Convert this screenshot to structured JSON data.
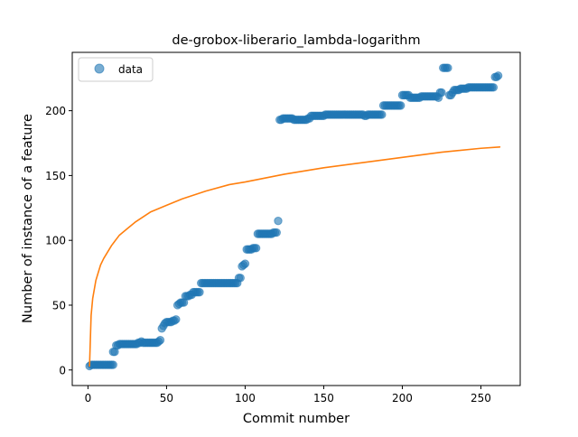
{
  "chart_data": {
    "type": "scatter",
    "title": "de-grobox-liberario_lambda-logarithm",
    "xlabel": "Commit number",
    "ylabel": "Number of instance of a feature",
    "xlim": [
      -10,
      275
    ],
    "ylim": [
      -12,
      245
    ],
    "xticks": [
      0,
      50,
      100,
      150,
      200,
      250
    ],
    "yticks": [
      0,
      50,
      100,
      150,
      200
    ],
    "grid": false,
    "legend": {
      "position": "top-left",
      "entries": [
        "data"
      ]
    },
    "series": [
      {
        "name": "data",
        "kind": "scatter",
        "color": "#1f77b4",
        "points": [
          [
            1,
            3
          ],
          [
            2,
            4
          ],
          [
            3,
            4
          ],
          [
            4,
            4
          ],
          [
            5,
            4
          ],
          [
            6,
            4
          ],
          [
            7,
            4
          ],
          [
            8,
            4
          ],
          [
            9,
            4
          ],
          [
            10,
            4
          ],
          [
            11,
            4
          ],
          [
            12,
            4
          ],
          [
            13,
            4
          ],
          [
            14,
            4
          ],
          [
            15,
            4
          ],
          [
            16,
            4
          ],
          [
            16,
            14
          ],
          [
            17,
            14
          ],
          [
            18,
            19
          ],
          [
            19,
            19
          ],
          [
            20,
            20
          ],
          [
            21,
            20
          ],
          [
            22,
            20
          ],
          [
            23,
            20
          ],
          [
            24,
            20
          ],
          [
            25,
            20
          ],
          [
            26,
            20
          ],
          [
            27,
            20
          ],
          [
            28,
            20
          ],
          [
            29,
            20
          ],
          [
            30,
            20
          ],
          [
            31,
            20
          ],
          [
            32,
            21
          ],
          [
            33,
            21
          ],
          [
            34,
            22
          ],
          [
            35,
            21
          ],
          [
            36,
            21
          ],
          [
            37,
            21
          ],
          [
            38,
            21
          ],
          [
            39,
            21
          ],
          [
            40,
            21
          ],
          [
            41,
            21
          ],
          [
            42,
            21
          ],
          [
            43,
            21
          ],
          [
            44,
            21
          ],
          [
            45,
            22
          ],
          [
            46,
            23
          ],
          [
            47,
            32
          ],
          [
            48,
            34
          ],
          [
            49,
            36
          ],
          [
            50,
            37
          ],
          [
            51,
            37
          ],
          [
            52,
            37
          ],
          [
            53,
            37
          ],
          [
            54,
            38
          ],
          [
            55,
            38
          ],
          [
            56,
            39
          ],
          [
            57,
            50
          ],
          [
            58,
            51
          ],
          [
            59,
            52
          ],
          [
            60,
            52
          ],
          [
            61,
            52
          ],
          [
            62,
            57
          ],
          [
            63,
            57
          ],
          [
            64,
            57
          ],
          [
            65,
            58
          ],
          [
            66,
            58
          ],
          [
            67,
            60
          ],
          [
            68,
            60
          ],
          [
            69,
            60
          ],
          [
            70,
            60
          ],
          [
            71,
            60
          ],
          [
            72,
            67
          ],
          [
            73,
            67
          ],
          [
            74,
            67
          ],
          [
            75,
            67
          ],
          [
            76,
            67
          ],
          [
            77,
            67
          ],
          [
            78,
            67
          ],
          [
            79,
            67
          ],
          [
            80,
            67
          ],
          [
            81,
            67
          ],
          [
            82,
            67
          ],
          [
            83,
            67
          ],
          [
            84,
            67
          ],
          [
            85,
            67
          ],
          [
            86,
            67
          ],
          [
            87,
            67
          ],
          [
            88,
            67
          ],
          [
            89,
            67
          ],
          [
            90,
            67
          ],
          [
            91,
            67
          ],
          [
            92,
            67
          ],
          [
            93,
            67
          ],
          [
            94,
            67
          ],
          [
            95,
            67
          ],
          [
            96,
            71
          ],
          [
            97,
            71
          ],
          [
            98,
            80
          ],
          [
            99,
            81
          ],
          [
            100,
            82
          ],
          [
            101,
            93
          ],
          [
            102,
            93
          ],
          [
            103,
            93
          ],
          [
            104,
            93
          ],
          [
            105,
            94
          ],
          [
            106,
            94
          ],
          [
            107,
            94
          ],
          [
            108,
            105
          ],
          [
            109,
            105
          ],
          [
            110,
            105
          ],
          [
            111,
            105
          ],
          [
            112,
            105
          ],
          [
            113,
            105
          ],
          [
            114,
            105
          ],
          [
            115,
            105
          ],
          [
            116,
            105
          ],
          [
            117,
            105
          ],
          [
            118,
            106
          ],
          [
            119,
            106
          ],
          [
            120,
            106
          ],
          [
            121,
            115
          ],
          [
            122,
            193
          ],
          [
            123,
            193
          ],
          [
            124,
            194
          ],
          [
            125,
            194
          ],
          [
            126,
            194
          ],
          [
            127,
            194
          ],
          [
            128,
            194
          ],
          [
            129,
            194
          ],
          [
            130,
            194
          ],
          [
            131,
            193
          ],
          [
            132,
            193
          ],
          [
            133,
            193
          ],
          [
            134,
            193
          ],
          [
            135,
            193
          ],
          [
            136,
            193
          ],
          [
            137,
            193
          ],
          [
            138,
            193
          ],
          [
            139,
            193
          ],
          [
            140,
            194
          ],
          [
            141,
            194
          ],
          [
            142,
            196
          ],
          [
            143,
            196
          ],
          [
            144,
            196
          ],
          [
            145,
            196
          ],
          [
            146,
            196
          ],
          [
            147,
            196
          ],
          [
            148,
            196
          ],
          [
            149,
            196
          ],
          [
            150,
            196
          ],
          [
            151,
            197
          ],
          [
            152,
            197
          ],
          [
            153,
            197
          ],
          [
            154,
            197
          ],
          [
            155,
            197
          ],
          [
            156,
            197
          ],
          [
            157,
            197
          ],
          [
            158,
            197
          ],
          [
            159,
            197
          ],
          [
            160,
            197
          ],
          [
            161,
            197
          ],
          [
            162,
            197
          ],
          [
            163,
            197
          ],
          [
            164,
            197
          ],
          [
            165,
            197
          ],
          [
            166,
            197
          ],
          [
            167,
            197
          ],
          [
            168,
            197
          ],
          [
            169,
            197
          ],
          [
            170,
            197
          ],
          [
            171,
            197
          ],
          [
            172,
            197
          ],
          [
            173,
            197
          ],
          [
            174,
            197
          ],
          [
            175,
            197
          ],
          [
            176,
            196
          ],
          [
            177,
            196
          ],
          [
            178,
            197
          ],
          [
            179,
            197
          ],
          [
            180,
            197
          ],
          [
            181,
            197
          ],
          [
            182,
            197
          ],
          [
            183,
            197
          ],
          [
            184,
            197
          ],
          [
            185,
            197
          ],
          [
            186,
            197
          ],
          [
            187,
            197
          ],
          [
            188,
            204
          ],
          [
            189,
            204
          ],
          [
            190,
            204
          ],
          [
            191,
            204
          ],
          [
            192,
            204
          ],
          [
            193,
            204
          ],
          [
            194,
            204
          ],
          [
            195,
            204
          ],
          [
            196,
            204
          ],
          [
            197,
            204
          ],
          [
            198,
            204
          ],
          [
            199,
            204
          ],
          [
            200,
            212
          ],
          [
            201,
            212
          ],
          [
            202,
            212
          ],
          [
            203,
            212
          ],
          [
            204,
            212
          ],
          [
            205,
            210
          ],
          [
            206,
            210
          ],
          [
            207,
            210
          ],
          [
            208,
            210
          ],
          [
            209,
            210
          ],
          [
            210,
            210
          ],
          [
            211,
            210
          ],
          [
            212,
            211
          ],
          [
            213,
            211
          ],
          [
            214,
            211
          ],
          [
            215,
            211
          ],
          [
            216,
            211
          ],
          [
            217,
            211
          ],
          [
            218,
            211
          ],
          [
            219,
            211
          ],
          [
            220,
            211
          ],
          [
            221,
            211
          ],
          [
            222,
            211
          ],
          [
            223,
            210
          ],
          [
            224,
            214
          ],
          [
            225,
            214
          ],
          [
            226,
            233
          ],
          [
            227,
            233
          ],
          [
            228,
            233
          ],
          [
            229,
            233
          ],
          [
            230,
            212
          ],
          [
            231,
            212
          ],
          [
            232,
            214
          ],
          [
            233,
            216
          ],
          [
            234,
            216
          ],
          [
            235,
            216
          ],
          [
            236,
            216
          ],
          [
            237,
            217
          ],
          [
            238,
            217
          ],
          [
            239,
            217
          ],
          [
            240,
            217
          ],
          [
            241,
            217
          ],
          [
            242,
            218
          ],
          [
            243,
            218
          ],
          [
            244,
            218
          ],
          [
            245,
            218
          ],
          [
            246,
            218
          ],
          [
            247,
            218
          ],
          [
            248,
            218
          ],
          [
            249,
            218
          ],
          [
            250,
            218
          ],
          [
            251,
            218
          ],
          [
            252,
            218
          ],
          [
            253,
            218
          ],
          [
            254,
            218
          ],
          [
            255,
            218
          ],
          [
            256,
            218
          ],
          [
            257,
            218
          ],
          [
            258,
            218
          ],
          [
            259,
            226
          ],
          [
            260,
            226
          ],
          [
            261,
            227
          ]
        ]
      },
      {
        "kind": "line",
        "color": "#ff7f0e",
        "points": [
          [
            1,
            3
          ],
          [
            2,
            42
          ],
          [
            3,
            55
          ],
          [
            5,
            69
          ],
          [
            8,
            81
          ],
          [
            10,
            86
          ],
          [
            15,
            96
          ],
          [
            20,
            104
          ],
          [
            25,
            109
          ],
          [
            30,
            114
          ],
          [
            40,
            122
          ],
          [
            50,
            127
          ],
          [
            60,
            132
          ],
          [
            75,
            138
          ],
          [
            90,
            143
          ],
          [
            100,
            145
          ],
          [
            125,
            151
          ],
          [
            150,
            156
          ],
          [
            175,
            160
          ],
          [
            200,
            164
          ],
          [
            225,
            168
          ],
          [
            250,
            171
          ],
          [
            262,
            172
          ]
        ]
      }
    ]
  }
}
